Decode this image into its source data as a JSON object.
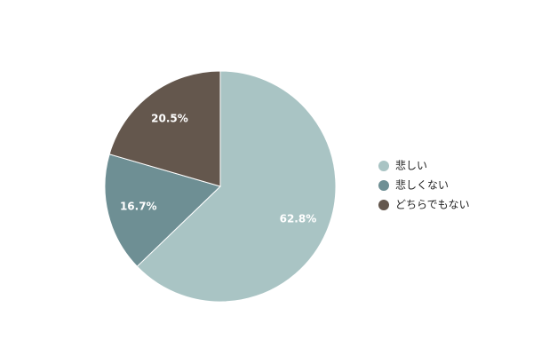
{
  "chart_data": {
    "type": "pie",
    "categories": [
      "悲しい",
      "悲しくない",
      "どちらでもない"
    ],
    "values": [
      62.8,
      16.7,
      20.5
    ],
    "value_labels": [
      "62.8%",
      "16.7%",
      "20.5%"
    ],
    "colors": [
      "#a9c4c4",
      "#6e8f94",
      "#64574d"
    ],
    "legend": "right"
  }
}
